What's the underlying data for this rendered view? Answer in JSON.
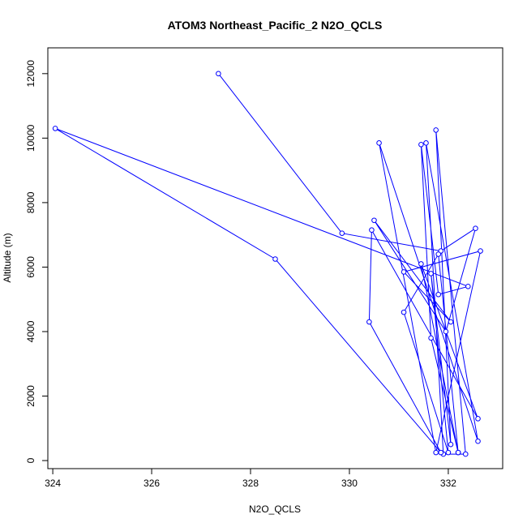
{
  "chart_data": {
    "type": "line",
    "title": "ATOM3 Northeast_Pacific_2 N2O_QCLS",
    "xlabel": "N2O_QCLS",
    "ylabel": "Altitude (m)",
    "xlim": [
      323.9,
      333.1
    ],
    "ylim": [
      -250,
      12800
    ],
    "x_ticks": [
      324,
      326,
      328,
      330,
      332
    ],
    "y_ticks": [
      0,
      2000,
      4000,
      6000,
      8000,
      10000,
      12000
    ],
    "grid": false,
    "legend": "none",
    "series": [
      {
        "style": "line-with-open-circles",
        "color": "#0000ff",
        "x": [
          327.35,
          329.85,
          331.85,
          332.55,
          331.95,
          330.5,
          332.05,
          331.1,
          332.65,
          331.75,
          330.6,
          332.6,
          331.55,
          331.9,
          332.35,
          331.75,
          332.05,
          331.65,
          332.0,
          331.1,
          331.8,
          332.2,
          331.65,
          331.45,
          331.8,
          332.4,
          324.05,
          328.5,
          331.85,
          330.4,
          330.45,
          332.6,
          331.45,
          332.2
        ],
        "y": [
          12000,
          7050,
          6500,
          7200,
          4000,
          7450,
          4300,
          5850,
          6500,
          250,
          9850,
          600,
          9850,
          200,
          200,
          10250,
          500,
          5800,
          250,
          4600,
          6400,
          250,
          3800,
          9800,
          5150,
          5400,
          10300,
          6250,
          250,
          4300,
          7150,
          1300,
          6100,
          250
        ]
      }
    ]
  }
}
